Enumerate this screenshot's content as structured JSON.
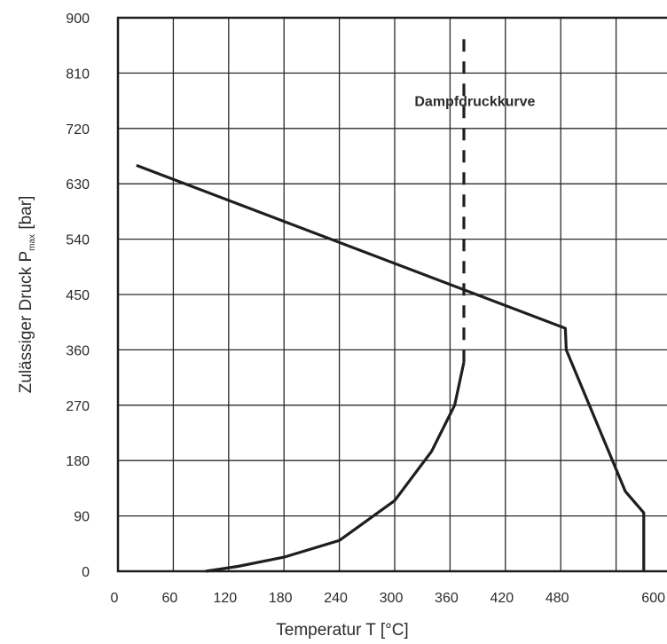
{
  "chart_data": {
    "type": "line",
    "xlabel": "Temperatur T [°C]",
    "ylabel": {
      "prefix": "Zulässiger Druck P",
      "subscript": "max",
      "suffix": " [bar]"
    },
    "xlim": [
      0,
      600
    ],
    "ylim": [
      0,
      900
    ],
    "x_ticks": [
      0,
      60,
      120,
      180,
      240,
      300,
      360,
      420,
      480,
      600
    ],
    "y_ticks": [
      0,
      90,
      180,
      270,
      360,
      450,
      540,
      630,
      720,
      810,
      900
    ],
    "x_ticks_display": [
      "0",
      "60",
      "120",
      "180",
      "240",
      "300",
      "360",
      "420",
      "480",
      "600"
    ],
    "y_ticks_display": [
      "0",
      "90",
      "180",
      "270",
      "360",
      "450",
      "540",
      "630",
      "720",
      "810",
      "900"
    ],
    "grid": true,
    "annotations": [
      {
        "text": "Dampfdruckkurve",
        "x": 360,
        "y": 765
      }
    ],
    "series": [
      {
        "style": "solid",
        "points": [
          [
            20,
            660
          ],
          [
            485,
            395
          ],
          [
            486,
            360
          ],
          [
            550,
            130
          ],
          [
            570,
            95
          ],
          [
            570,
            0
          ]
        ]
      },
      {
        "style": "solid",
        "points": [
          [
            95,
            0
          ],
          [
            130,
            8
          ],
          [
            180,
            23
          ],
          [
            240,
            50
          ],
          [
            300,
            115
          ],
          [
            340,
            195
          ],
          [
            365,
            270
          ],
          [
            375,
            340
          ]
        ]
      },
      {
        "style": "dashed",
        "points": [
          [
            375,
            340
          ],
          [
            375,
            870
          ]
        ]
      }
    ]
  }
}
